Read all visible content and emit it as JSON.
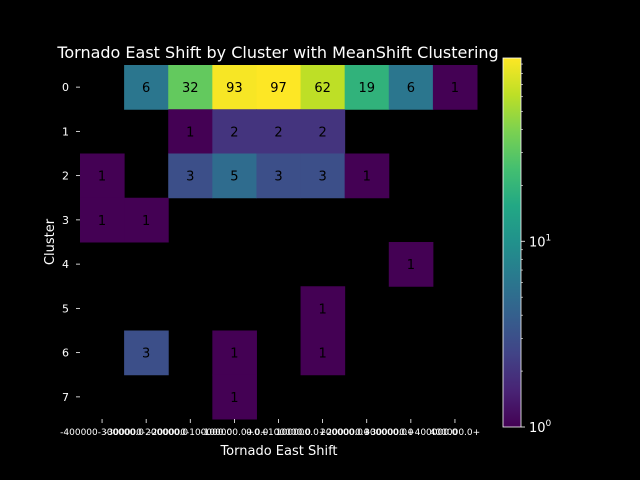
{
  "chart_data": {
    "type": "heatmap",
    "title": "Tornado East Shift by Cluster with MeanShift Clustering",
    "xlabel": "Tornado East Shift",
    "ylabel": "Cluster",
    "x_categories": [
      "-400000-300000.0",
      "-300000-200000.0",
      "-200000-100000.0",
      "-100000.0+0.0",
      "0.0+100000.0",
      "100000.0+200000.0",
      "200000.0+300000.0",
      "300000.0+400000.0",
      "400000.0+"
    ],
    "y_categories": [
      "0",
      "1",
      "2",
      "3",
      "4",
      "5",
      "6",
      "7"
    ],
    "values": [
      [
        null,
        6,
        32,
        93,
        97,
        62,
        19,
        6,
        1
      ],
      [
        null,
        null,
        1,
        2,
        2,
        2,
        null,
        null,
        null
      ],
      [
        1,
        null,
        3,
        5,
        3,
        3,
        1,
        null,
        null
      ],
      [
        1,
        1,
        null,
        null,
        null,
        null,
        null,
        null,
        null
      ],
      [
        null,
        null,
        null,
        null,
        null,
        null,
        null,
        1,
        null
      ],
      [
        null,
        null,
        null,
        null,
        null,
        1,
        null,
        null,
        null
      ],
      [
        null,
        3,
        null,
        1,
        null,
        1,
        null,
        null,
        null
      ],
      [
        null,
        null,
        null,
        1,
        null,
        null,
        null,
        null,
        null
      ]
    ],
    "colormap": "viridis",
    "color_scale": "log",
    "color_range": [
      1,
      97
    ],
    "colorbar_ticks": [
      {
        "value": 10,
        "label": "10",
        "exp": "1"
      },
      {
        "value": 1,
        "label": "10",
        "exp": "0"
      }
    ],
    "background": "#000000",
    "grid": false
  }
}
